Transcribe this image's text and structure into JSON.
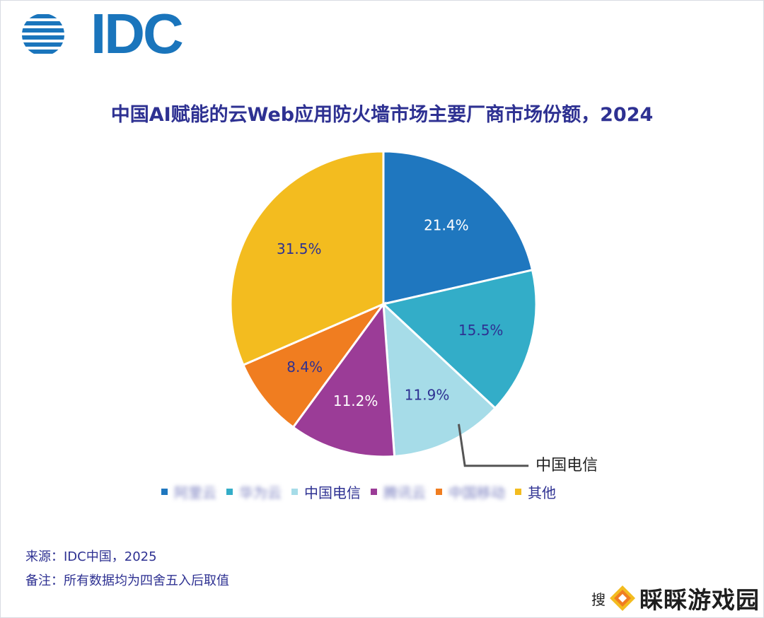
{
  "logo": {
    "text": "IDC"
  },
  "chart_data": {
    "type": "pie",
    "title": "中国AI赋能的云Web应用防火墙市场主要厂商市场份额，2024",
    "slices": [
      {
        "label": "阿里云",
        "value": 21.4,
        "display": "21.4%",
        "color": "#1f77bf",
        "label_color": "#ffffff",
        "blurred": true
      },
      {
        "label": "华为云",
        "value": 15.5,
        "display": "15.5%",
        "color": "#33adc8",
        "label_color": "#2e3192",
        "blurred": true
      },
      {
        "label": "中国电信",
        "value": 11.9,
        "display": "11.9%",
        "color": "#a6dce8",
        "label_color": "#2e3192",
        "blurred": false
      },
      {
        "label": "腾讯云",
        "value": 11.2,
        "display": "11.2%",
        "color": "#9b3c97",
        "label_color": "#ffffff",
        "blurred": true
      },
      {
        "label": "中国移动",
        "value": 8.4,
        "display": "8.4%",
        "color": "#f07d20",
        "label_color": "#2e3192",
        "blurred": true
      },
      {
        "label": "其他",
        "value": 31.5,
        "display": "31.5%",
        "color": "#f3bc1f",
        "label_color": "#2e3192",
        "blurred": false
      }
    ],
    "callout": {
      "slice_index": 2,
      "text": "中国电信"
    },
    "legend_position": "bottom"
  },
  "footnotes": {
    "source": "来源：IDC中国，2025",
    "note": "备注：所有数据均为四舍五入后取值"
  },
  "watermark": {
    "left": "搜",
    "text": "睬睬游戏园"
  }
}
